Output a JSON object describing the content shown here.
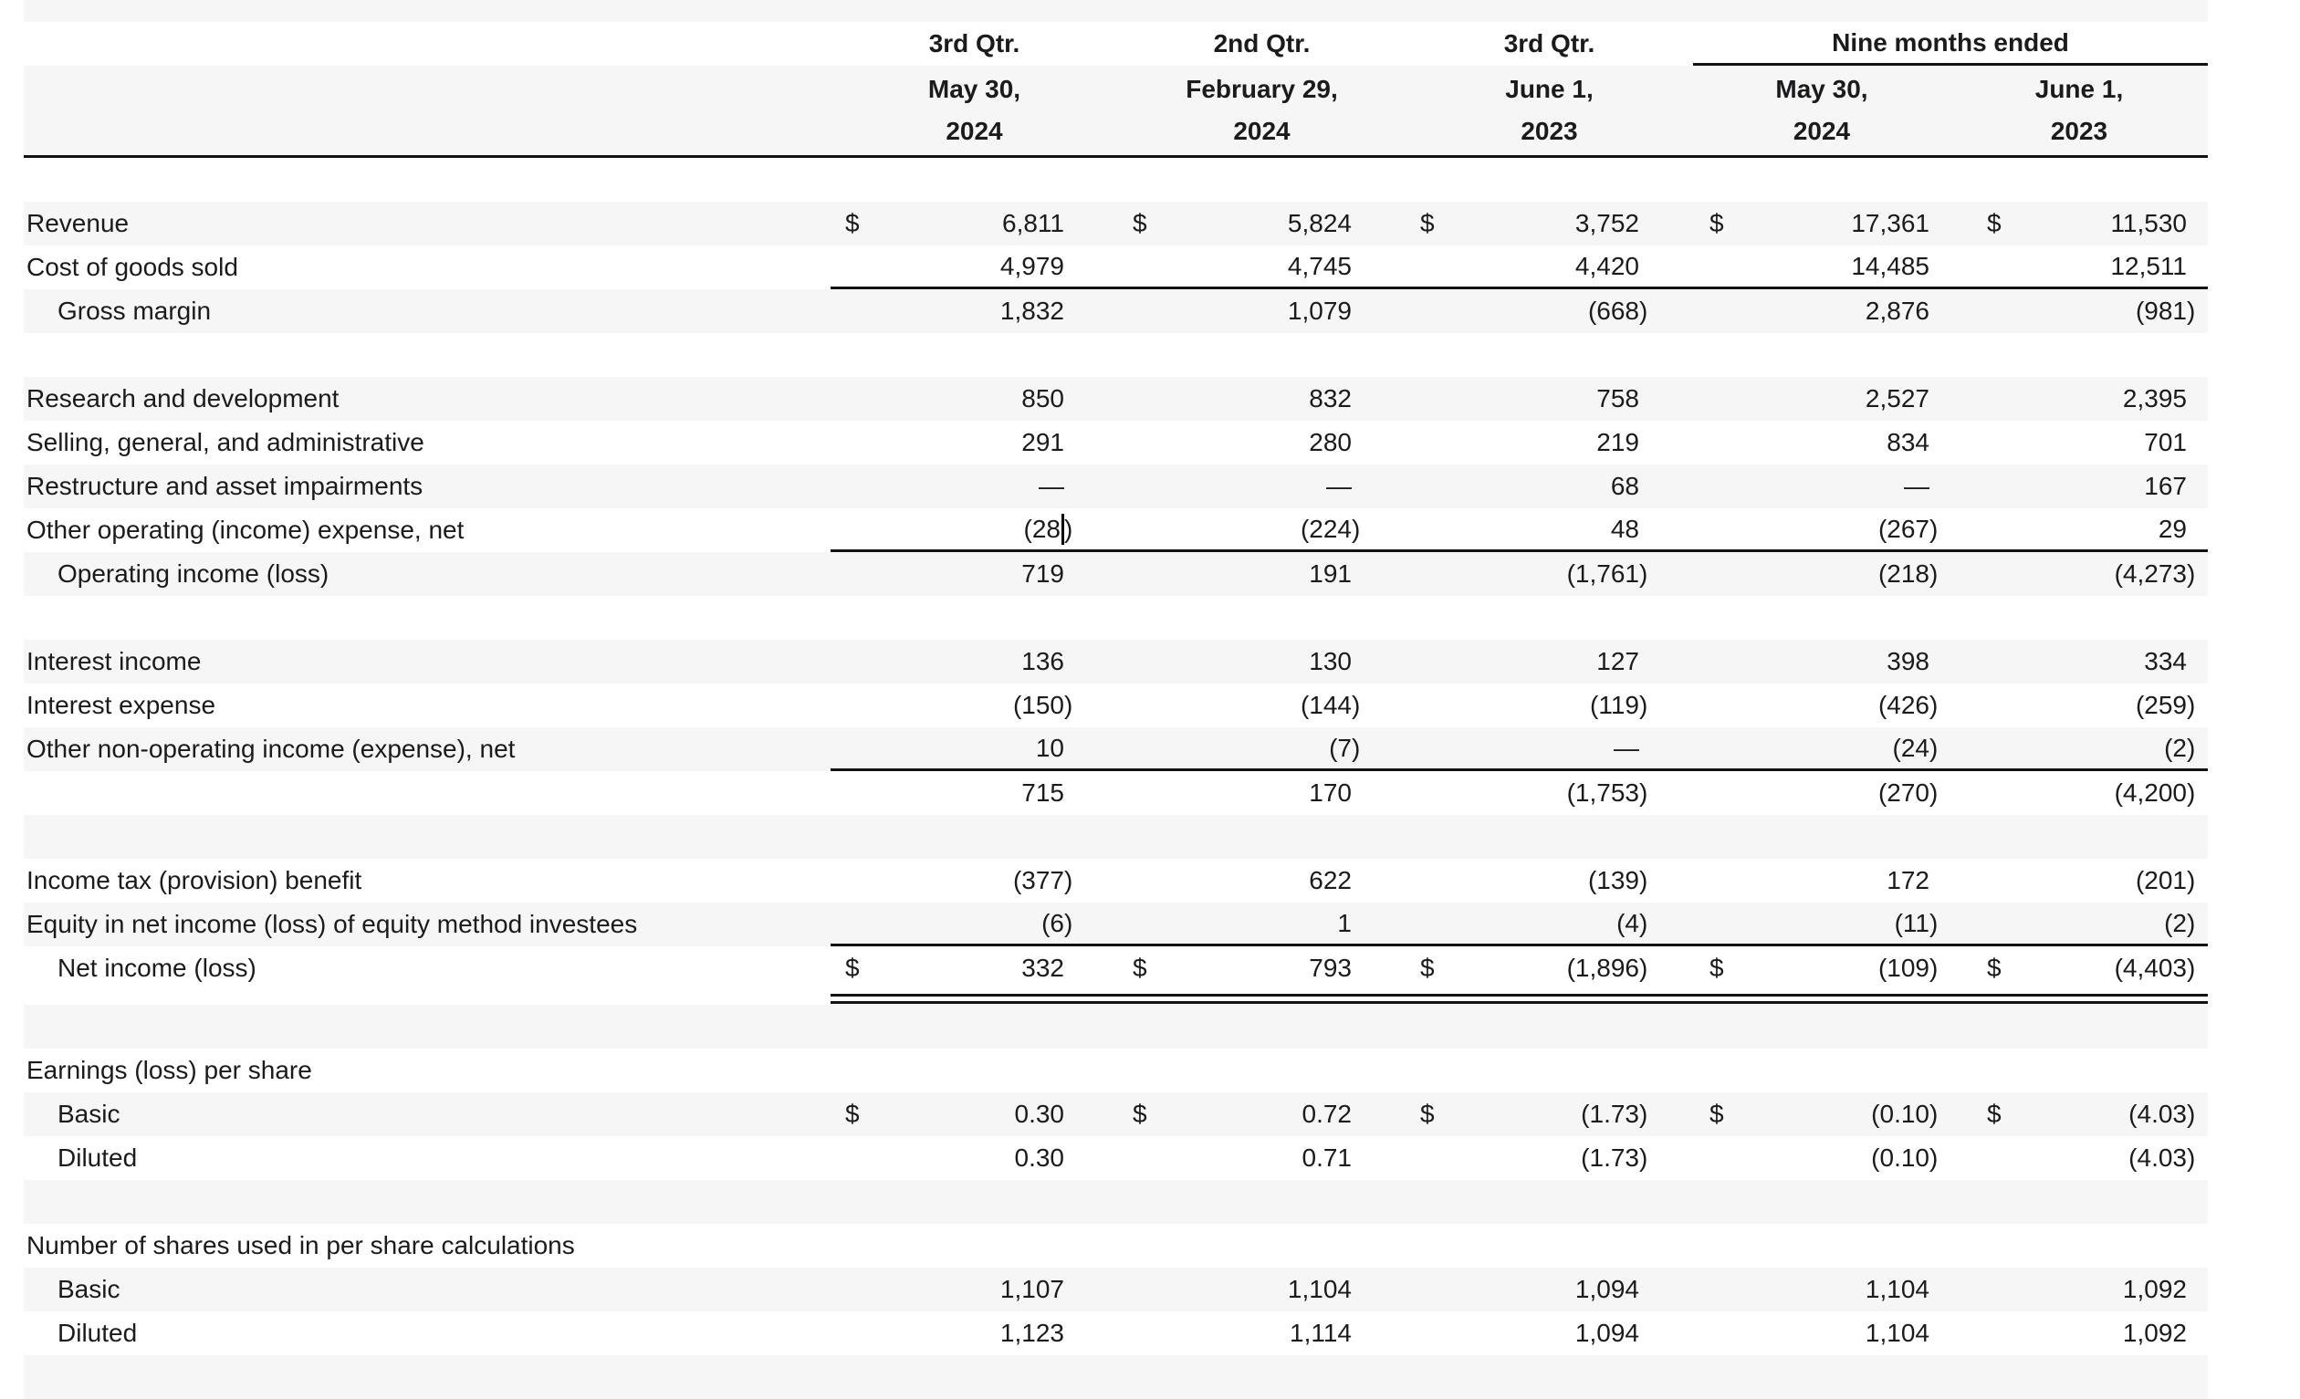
{
  "table": {
    "header": {
      "quarter_columns": [
        {
          "period": "3rd Qtr.",
          "date": [
            "May 30,",
            "2024"
          ]
        },
        {
          "period": "2nd Qtr.",
          "date": [
            "February 29,",
            "2024"
          ]
        },
        {
          "period": "3rd Qtr.",
          "date": [
            "June 1,",
            "2023"
          ]
        }
      ],
      "nine_months": {
        "label": "Nine months ended",
        "columns": [
          {
            "date": [
              "May 30,",
              "2024"
            ]
          },
          {
            "date": [
              "June 1,",
              "2023"
            ]
          }
        ]
      }
    },
    "rows": [
      {
        "type": "blank"
      },
      {
        "type": "data",
        "label": "Revenue",
        "dollar": true,
        "values": [
          "6,811",
          "5,824",
          "3,752",
          "17,361",
          "11,530"
        ]
      },
      {
        "type": "data",
        "label": "Cost of goods sold",
        "values": [
          "4,979",
          "4,745",
          "4,420",
          "14,485",
          "12,511"
        ],
        "rule_below": true
      },
      {
        "type": "data",
        "label": "Gross margin",
        "indent": true,
        "values": [
          "1,832",
          "1,079",
          "(668)",
          "2,876",
          "(981)"
        ]
      },
      {
        "type": "blank"
      },
      {
        "type": "data",
        "label": "Research and development",
        "values": [
          "850",
          "832",
          "758",
          "2,527",
          "2,395"
        ]
      },
      {
        "type": "data",
        "label": "Selling, general, and administrative",
        "values": [
          "291",
          "280",
          "219",
          "834",
          "701"
        ]
      },
      {
        "type": "data",
        "label": "Restructure and asset impairments",
        "values": [
          "—",
          "—",
          "68",
          "—",
          "167"
        ]
      },
      {
        "type": "data",
        "label": "Other operating (income) expense, net",
        "values": [
          "(28)",
          "(224)",
          "48",
          "(267)",
          "29"
        ],
        "rule_below": true,
        "caret_col": 0
      },
      {
        "type": "data",
        "label": "Operating income (loss)",
        "indent": true,
        "values": [
          "719",
          "191",
          "(1,761)",
          "(218)",
          "(4,273)"
        ]
      },
      {
        "type": "blank"
      },
      {
        "type": "data",
        "label": "Interest income",
        "values": [
          "136",
          "130",
          "127",
          "398",
          "334"
        ]
      },
      {
        "type": "data",
        "label": "Interest expense",
        "values": [
          "(150)",
          "(144)",
          "(119)",
          "(426)",
          "(259)"
        ]
      },
      {
        "type": "data",
        "label": "Other non-operating income (expense), net",
        "values": [
          "10",
          "(7)",
          "—",
          "(24)",
          "(2)"
        ],
        "rule_below": true
      },
      {
        "type": "data",
        "label": "",
        "values": [
          "715",
          "170",
          "(1,753)",
          "(270)",
          "(4,200)"
        ]
      },
      {
        "type": "blank"
      },
      {
        "type": "data",
        "label": "Income tax (provision) benefit",
        "values": [
          "(377)",
          "622",
          "(139)",
          "172",
          "(201)"
        ]
      },
      {
        "type": "data",
        "label": "Equity in net income (loss) of equity method investees",
        "values": [
          "(6)",
          "1",
          "(4)",
          "(11)",
          "(2)"
        ],
        "rule_below": true
      },
      {
        "type": "data",
        "label": "Net income (loss)",
        "indent": true,
        "dollar": true,
        "values": [
          "332",
          "793",
          "(1,896)",
          "(109)",
          "(4,403)"
        ]
      },
      {
        "type": "double_rule"
      },
      {
        "type": "blank"
      },
      {
        "type": "section",
        "label": "Earnings (loss) per share"
      },
      {
        "type": "data",
        "label": "Basic",
        "indent": true,
        "dollar": true,
        "values": [
          "0.30",
          "0.72",
          "(1.73)",
          "(0.10)",
          "(4.03)"
        ]
      },
      {
        "type": "data",
        "label": "Diluted",
        "indent": true,
        "values": [
          "0.30",
          "0.71",
          "(1.73)",
          "(0.10)",
          "(4.03)"
        ]
      },
      {
        "type": "blank"
      },
      {
        "type": "section",
        "label": "Number of shares used in per share calculations"
      },
      {
        "type": "data",
        "label": "Basic",
        "indent": true,
        "values": [
          "1,107",
          "1,104",
          "1,094",
          "1,104",
          "1,092"
        ]
      },
      {
        "type": "data",
        "label": "Diluted",
        "indent": true,
        "values": [
          "1,123",
          "1,114",
          "1,094",
          "1,104",
          "1,092"
        ]
      },
      {
        "type": "blank"
      }
    ],
    "currency_symbol": "$"
  },
  "colors": {
    "stripe": "#f6f6f6",
    "rule": "#121212",
    "text": "#1b1b1d"
  },
  "caret": {
    "row_label": "Other operating (income) expense, net",
    "column_index": 0
  }
}
